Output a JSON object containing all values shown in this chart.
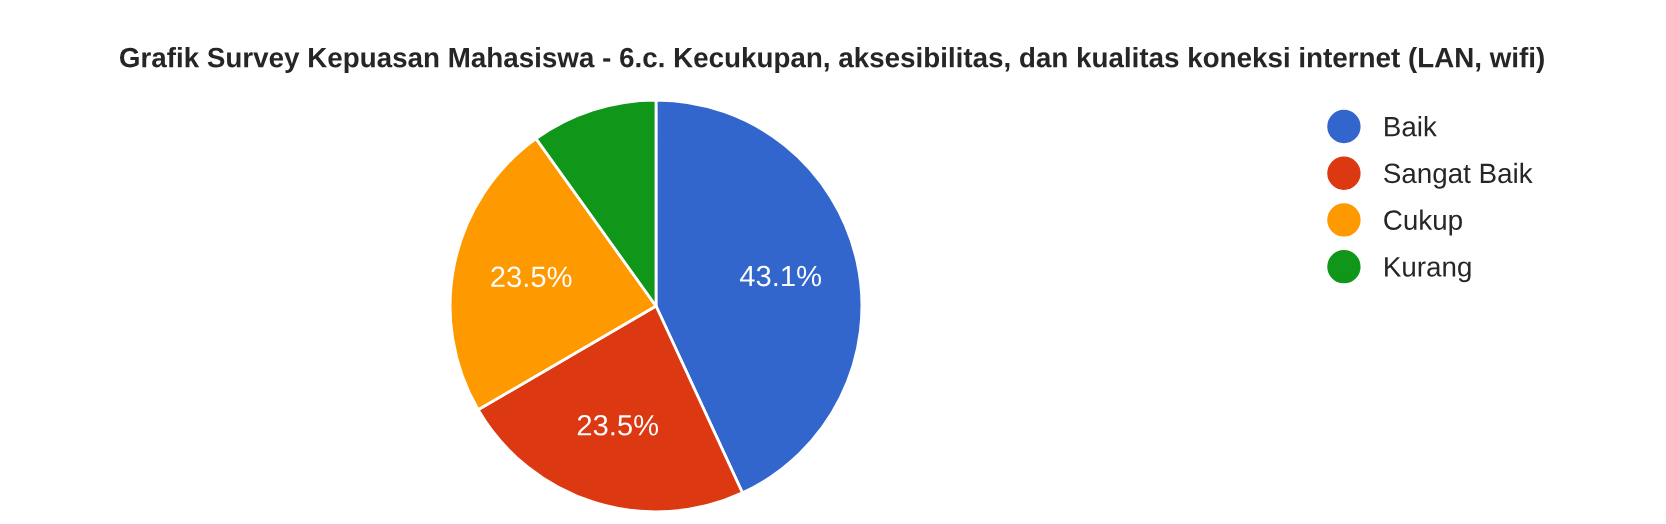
{
  "chart_data": {
    "type": "pie",
    "title": "Grafik Survey Kepuasan Mahasiswa - 6.c. Kecukupan, aksesibilitas, dan kualitas koneksi internet (LAN, wifi)",
    "categories": [
      "Baik",
      "Sangat Baik",
      "Cukup",
      "Kurang"
    ],
    "values": [
      43.1,
      23.5,
      23.5,
      9.9
    ],
    "value_labels": [
      "43.1%",
      "23.5%",
      "23.5%",
      null
    ],
    "colors": [
      "#3366cc",
      "#dc3912",
      "#ff9900",
      "#109618"
    ],
    "legend": "right"
  }
}
